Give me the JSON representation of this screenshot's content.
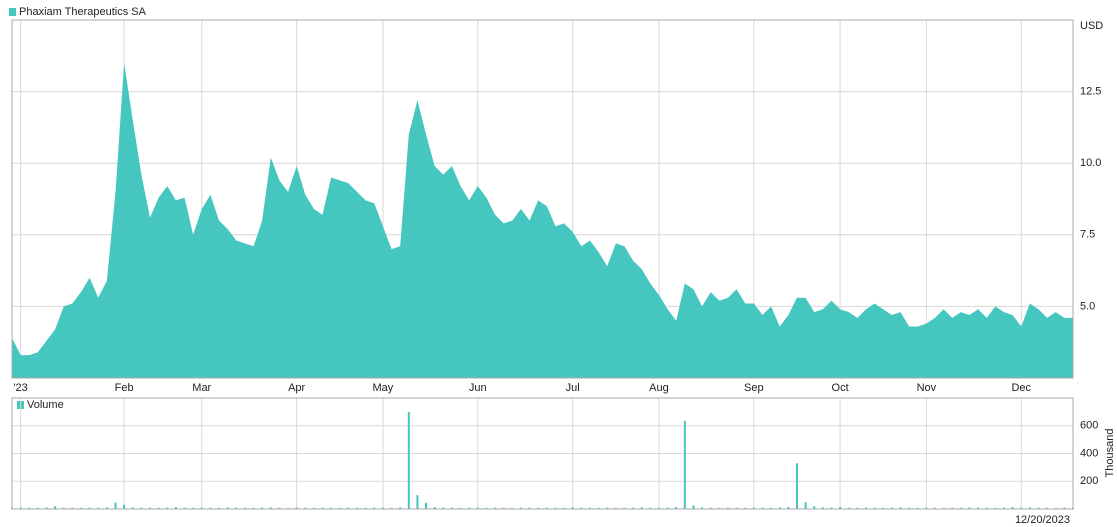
{
  "chart_data": [
    {
      "type": "area",
      "y_unit": "USD",
      "categories": [
        null,
        "'23",
        null,
        null,
        null,
        null,
        null,
        null,
        null,
        null,
        null,
        null,
        null,
        "Feb",
        null,
        null,
        null,
        null,
        null,
        null,
        null,
        null,
        "Mar",
        null,
        null,
        null,
        null,
        null,
        null,
        null,
        null,
        null,
        null,
        "Apr",
        null,
        null,
        null,
        null,
        null,
        null,
        null,
        null,
        null,
        "May",
        null,
        null,
        null,
        null,
        null,
        null,
        null,
        null,
        null,
        null,
        "Jun",
        null,
        null,
        null,
        null,
        null,
        null,
        null,
        null,
        null,
        null,
        "Jul",
        null,
        null,
        null,
        null,
        null,
        null,
        null,
        null,
        null,
        "Aug",
        null,
        null,
        null,
        null,
        null,
        null,
        null,
        null,
        null,
        null,
        "Sep",
        null,
        null,
        null,
        null,
        null,
        null,
        null,
        null,
        null,
        "Oct",
        null,
        null,
        null,
        null,
        null,
        null,
        null,
        null,
        null,
        "Nov",
        null,
        null,
        null,
        null,
        null,
        null,
        null,
        null,
        null,
        null,
        "Dec",
        null,
        null,
        null,
        null,
        null,
        null
      ],
      "series": [
        {
          "name": "Phaxiam Therapeutics SA",
          "color": "#45c7bf",
          "values": [
            3.9,
            3.3,
            3.3,
            3.4,
            3.8,
            4.2,
            5.0,
            5.1,
            5.5,
            6.0,
            5.3,
            5.9,
            9.0,
            13.5,
            11.5,
            9.6,
            8.1,
            8.8,
            9.2,
            8.7,
            8.8,
            7.5,
            8.4,
            8.9,
            8.0,
            7.7,
            7.3,
            7.2,
            7.1,
            8.0,
            10.2,
            9.4,
            9.0,
            9.9,
            8.9,
            8.4,
            8.2,
            9.5,
            9.4,
            9.3,
            9.0,
            8.7,
            8.6,
            7.8,
            7.0,
            7.1,
            11.0,
            12.2,
            11.0,
            9.9,
            9.6,
            9.9,
            9.2,
            8.7,
            9.2,
            8.8,
            8.2,
            7.9,
            8.0,
            8.4,
            8.0,
            8.7,
            8.5,
            7.8,
            7.9,
            7.6,
            7.1,
            7.3,
            6.9,
            6.4,
            7.2,
            7.1,
            6.6,
            6.3,
            5.8,
            5.4,
            4.9,
            4.5,
            5.8,
            5.6,
            5.0,
            5.5,
            5.2,
            5.3,
            5.6,
            5.1,
            5.1,
            4.7,
            5.0,
            4.3,
            4.7,
            5.3,
            5.3,
            4.8,
            4.9,
            5.2,
            4.9,
            4.8,
            4.6,
            4.9,
            5.1,
            4.9,
            4.7,
            4.8,
            4.3,
            4.3,
            4.4,
            4.6,
            4.9,
            4.6,
            4.8,
            4.7,
            4.9,
            4.6,
            5.0,
            4.8,
            4.7,
            4.3,
            5.1,
            4.9,
            4.6,
            4.8,
            4.6,
            4.6
          ]
        }
      ],
      "ylim": [
        2.5,
        15
      ],
      "yticks": [
        {
          "value": 5,
          "label": "5.0"
        },
        {
          "value": 7.5,
          "label": "7.5"
        },
        {
          "value": 10,
          "label": "10.0"
        },
        {
          "value": 12.5,
          "label": "12.5"
        }
      ],
      "grid": true
    },
    {
      "type": "bar",
      "y_unit": "Thousand",
      "last_date": "12/20/2023",
      "series": [
        {
          "name": "Volume",
          "color": "#45c7bf",
          "values": [
            8,
            10,
            9,
            8,
            12,
            20,
            10,
            9,
            8,
            10,
            9,
            12,
            45,
            30,
            12,
            10,
            9,
            8,
            10,
            15,
            9,
            8,
            10,
            9,
            8,
            12,
            10,
            9,
            8,
            10,
            12,
            9,
            8,
            10,
            9,
            8,
            10,
            9,
            8,
            10,
            9,
            8,
            10,
            9,
            8,
            12,
            700,
            100,
            45,
            15,
            10,
            9,
            8,
            10,
            9,
            8,
            10,
            9,
            8,
            10,
            9,
            8,
            10,
            9,
            8,
            12,
            10,
            9,
            8,
            10,
            9,
            8,
            10,
            12,
            9,
            8,
            10,
            15,
            635,
            25,
            12,
            9,
            8,
            10,
            9,
            8,
            10,
            9,
            8,
            12,
            15,
            330,
            50,
            20,
            12,
            10,
            15,
            9,
            8,
            10,
            9,
            8,
            10,
            12,
            9,
            8,
            10,
            9,
            8,
            10,
            9,
            12,
            10,
            9,
            8,
            10,
            15,
            9,
            12,
            10,
            9,
            8,
            10,
            9
          ]
        }
      ],
      "ylim": [
        0,
        800
      ],
      "yticks": [
        200,
        400,
        600
      ],
      "grid": true
    }
  ]
}
